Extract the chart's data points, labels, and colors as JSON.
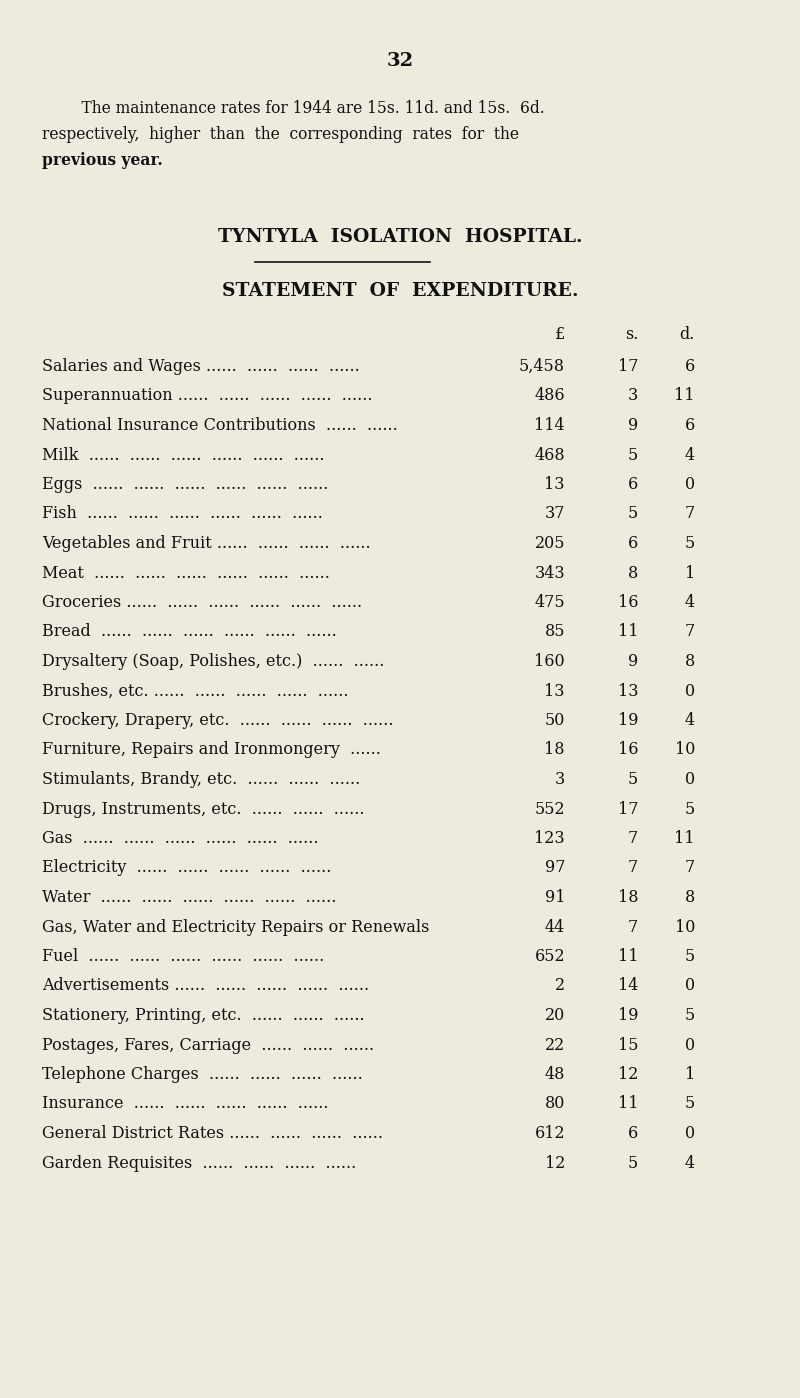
{
  "page_number": "32",
  "bg_color": "#edeade",
  "intro_text_lines": [
    "    The maintenance rates for 1944 are 15s. 11d. and 15s.  6d.",
    "respectively,  higher  than  the  corresponding  rates  for  the",
    "previous year."
  ],
  "intro_bold_line": 2,
  "hospital_title": "TYNTYLA  ISOLATION  HOSPITAL.",
  "section_title": "STATEMENT  OF  EXPENDITURE.",
  "col_header_pound": "£",
  "col_header_s": "s.",
  "col_header_d": "d.",
  "rows": [
    {
      "label": "Salaries and Wages",
      "trail": " ......  ......  ......  ......",
      "pounds": "5,458",
      "s": "17",
      "d": "6"
    },
    {
      "label": "Superannuation ......",
      "trail": "  ......  ......  ......  ......",
      "pounds": "486",
      "s": "3",
      "d": "11"
    },
    {
      "label": "National Insurance Contributions",
      "trail": "  ......  ......",
      "pounds": "114",
      "s": "9",
      "d": "6"
    },
    {
      "label": "Milk",
      "trail": "  ......  ......  ......  ......  ......  ......",
      "pounds": "468",
      "s": "5",
      "d": "4"
    },
    {
      "label": "Eggs",
      "trail": "  ......  ......  ......  ......  ......  ......",
      "pounds": "13",
      "s": "6",
      "d": "0"
    },
    {
      "label": "Fish",
      "trail": "  ......  ......  ......  ......  ......  ......",
      "pounds": "37",
      "s": "5",
      "d": "7"
    },
    {
      "label": "Vegetables and Fruit ......",
      "trail": "  ......  ......  ......",
      "pounds": "205",
      "s": "6",
      "d": "5"
    },
    {
      "label": "Meat",
      "trail": "  ......  ......  ......  ......  ......  ......",
      "pounds": "343",
      "s": "8",
      "d": "1"
    },
    {
      "label": "Groceries ......",
      "trail": "  ......  ......  ......  ......  ......",
      "pounds": "475",
      "s": "16",
      "d": "4"
    },
    {
      "label": "Bread",
      "trail": "  ......  ......  ......  ......  ......  ......",
      "pounds": "85",
      "s": "11",
      "d": "7"
    },
    {
      "label": "Drysaltery (Soap, Polishes, etc.)",
      "trail": "  ......  ......",
      "pounds": "160",
      "s": "9",
      "d": "8"
    },
    {
      "label": "Brushes, etc. ......",
      "trail": "  ......  ......  ......  ......",
      "pounds": "13",
      "s": "13",
      "d": "0"
    },
    {
      "label": "Crockery, Drapery, etc.",
      "trail": "  ......  ......  ......  ......",
      "pounds": "50",
      "s": "19",
      "d": "4"
    },
    {
      "label": "Furniture, Repairs and Ironmongery",
      "trail": "  ......",
      "pounds": "18",
      "s": "16",
      "d": "10"
    },
    {
      "label": "Stimulants, Brandy, etc.",
      "trail": "  ......  ......  ......",
      "pounds": "3",
      "s": "5",
      "d": "0"
    },
    {
      "label": "Drugs, Instruments, etc.",
      "trail": "  ......  ......  ......",
      "pounds": "552",
      "s": "17",
      "d": "5"
    },
    {
      "label": "Gas",
      "trail": "  ......  ......  ......  ......  ......  ......",
      "pounds": "123",
      "s": "7",
      "d": "11"
    },
    {
      "label": "Electricity",
      "trail": "  ......  ......  ......  ......  ......",
      "pounds": "97",
      "s": "7",
      "d": "7"
    },
    {
      "label": "Water",
      "trail": "  ......  ......  ......  ......  ......  ......",
      "pounds": "91",
      "s": "18",
      "d": "8"
    },
    {
      "label": "Gas, Water and Electricity Repairs or Renewals",
      "trail": "",
      "pounds": "44",
      "s": "7",
      "d": "10"
    },
    {
      "label": "Fuel",
      "trail": "  ......  ......  ......  ......  ......  ......",
      "pounds": "652",
      "s": "11",
      "d": "5"
    },
    {
      "label": "Advertisements ......",
      "trail": "  ......  ......  ......  ......",
      "pounds": "2",
      "s": "14",
      "d": "0"
    },
    {
      "label": "Stationery, Printing, etc.",
      "trail": "  ......  ......  ......",
      "pounds": "20",
      "s": "19",
      "d": "5"
    },
    {
      "label": "Postages, Fares, Carriage",
      "trail": "  ......  ......  ......",
      "pounds": "22",
      "s": "15",
      "d": "0"
    },
    {
      "label": "Telephone Charges",
      "trail": "  ......  ......  ......  ......",
      "pounds": "48",
      "s": "12",
      "d": "1"
    },
    {
      "label": "Insurance",
      "trail": "  ......  ......  ......  ......  ......",
      "pounds": "80",
      "s": "11",
      "d": "5"
    },
    {
      "label": "General District Rates ......",
      "trail": "  ......  ......  ......",
      "pounds": "612",
      "s": "6",
      "d": "0"
    },
    {
      "label": "Garden Requisites",
      "trail": "  ......  ......  ......  ......",
      "pounds": "12",
      "s": "5",
      "d": "4"
    }
  ],
  "text_color": "#111111",
  "label_fontsize": 11.5,
  "title_fontsize": 13.5,
  "header_fontsize": 11.5,
  "page_num_fontsize": 14
}
